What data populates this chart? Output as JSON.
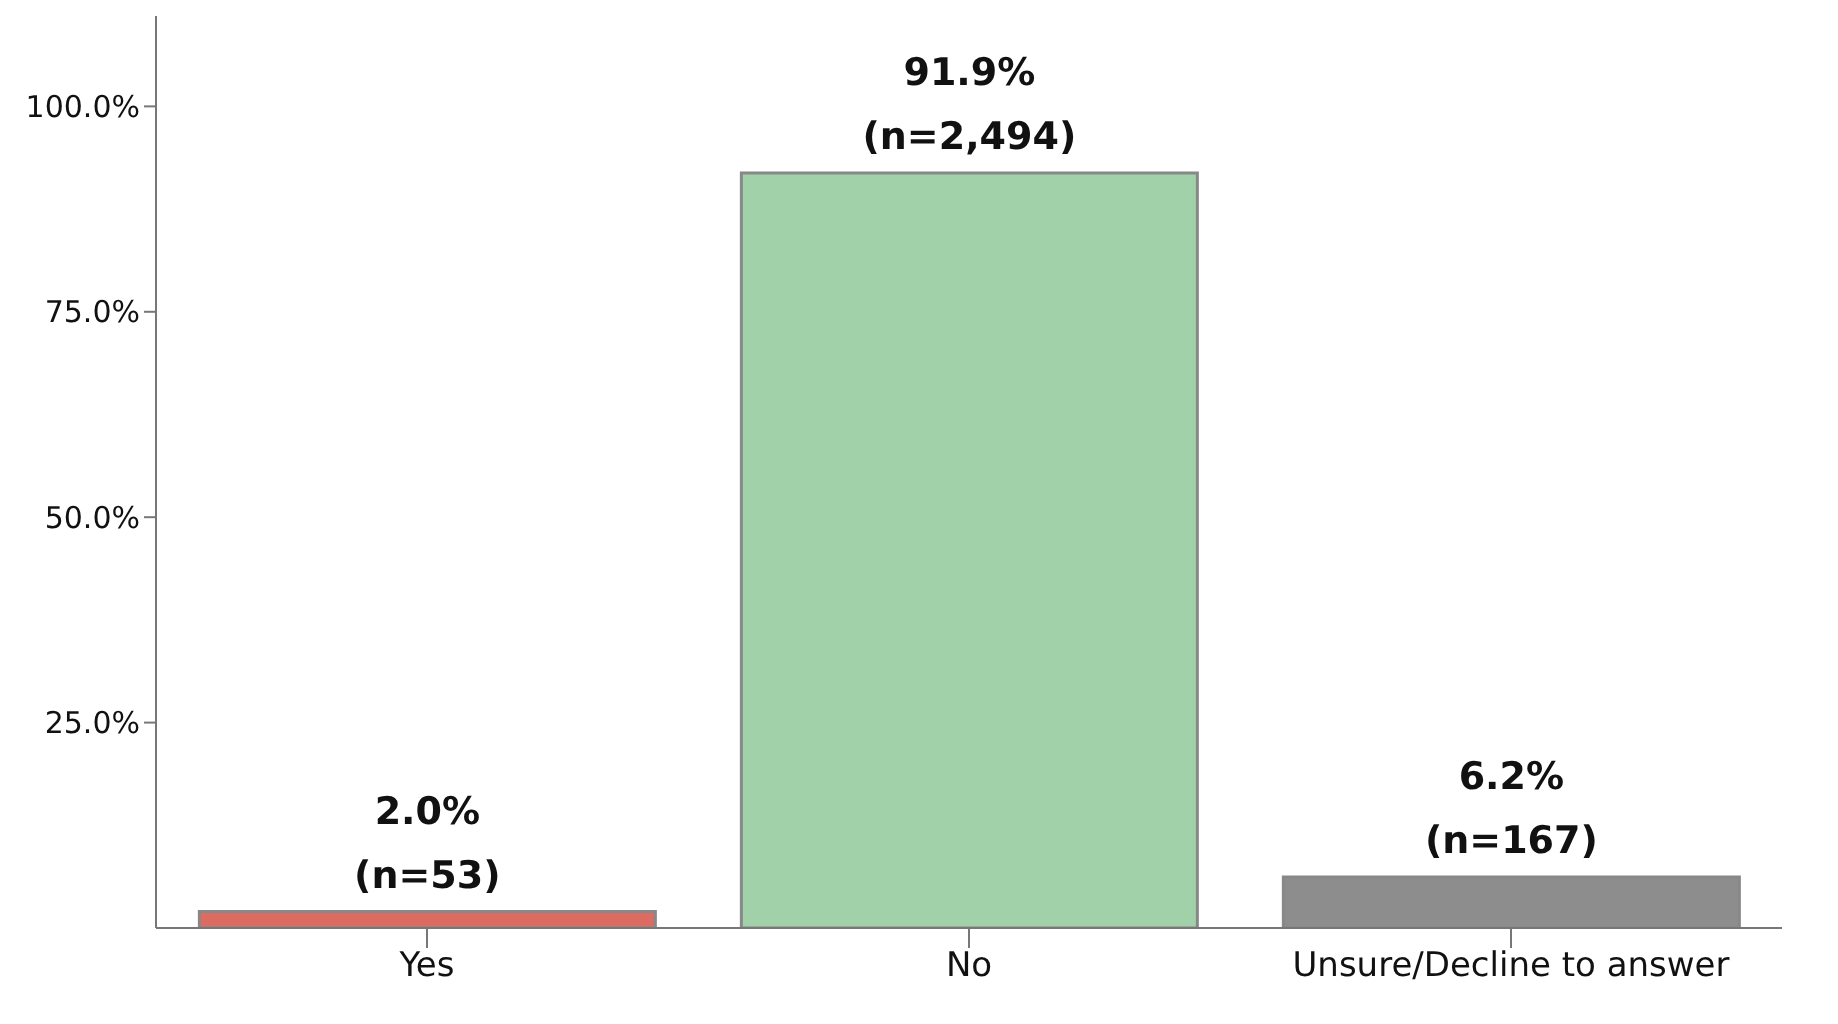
{
  "chart_data": {
    "type": "bar",
    "categories": [
      "Yes",
      "No",
      "Unsure/Decline to answer"
    ],
    "values": [
      2.0,
      91.9,
      6.2
    ],
    "colors": [
      "#dc6b61",
      "#a1d1a9",
      "#8d8d8d"
    ],
    "value_labels": [
      "2.0%\n(n=53)",
      "91.9%\n(n=2,494)",
      "6.2%\n(n=167)"
    ],
    "ylim": [
      0,
      111
    ],
    "yticks": [
      {
        "value": 25,
        "label": "25.0%"
      },
      {
        "value": 50,
        "label": "50.0%"
      },
      {
        "value": 75,
        "label": "75.0%"
      },
      {
        "value": 100,
        "label": "100.0%"
      }
    ],
    "grid": false,
    "legend": false
  }
}
